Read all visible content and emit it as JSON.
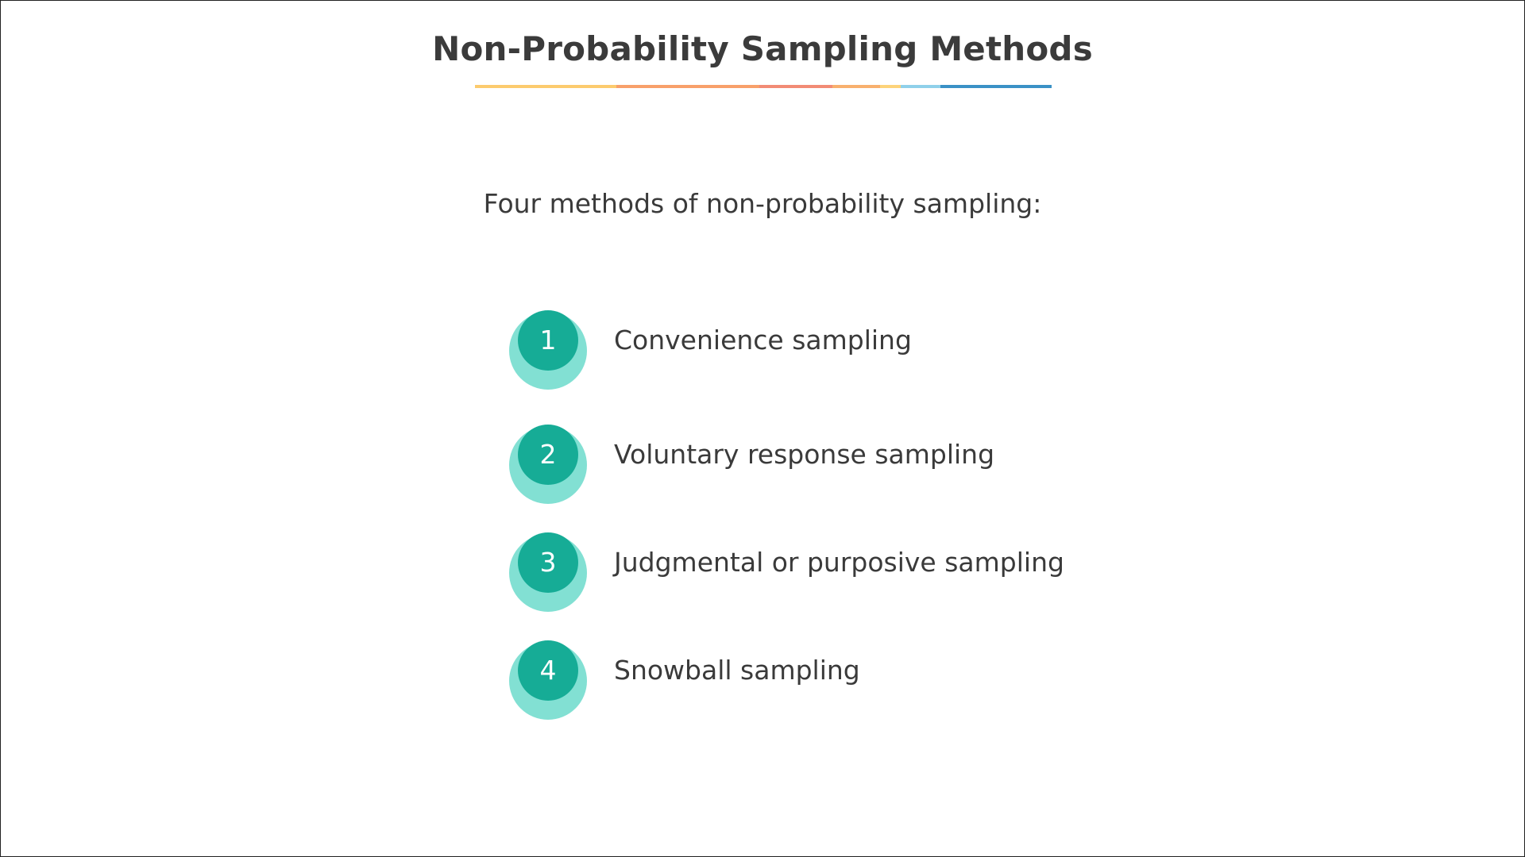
{
  "slide": {
    "title": "Non-Probability Sampling Methods",
    "intro": "Four methods of non-probability sampling:",
    "rule_colors": [
      "#fccb6e",
      "#f8a06a",
      "#f28b75",
      "#f8b06e",
      "#fdd37a",
      "#8fd0ea",
      "#3a91c6"
    ],
    "badge_colors": {
      "outer": "#82e0d3",
      "inner": "#16ac96"
    },
    "methods": [
      {
        "number": "1",
        "label": "Convenience sampling"
      },
      {
        "number": "2",
        "label": "Voluntary response sampling"
      },
      {
        "number": "3",
        "label": "Judgmental or purposive sampling"
      },
      {
        "number": "4",
        "label": "Snowball sampling"
      }
    ]
  }
}
